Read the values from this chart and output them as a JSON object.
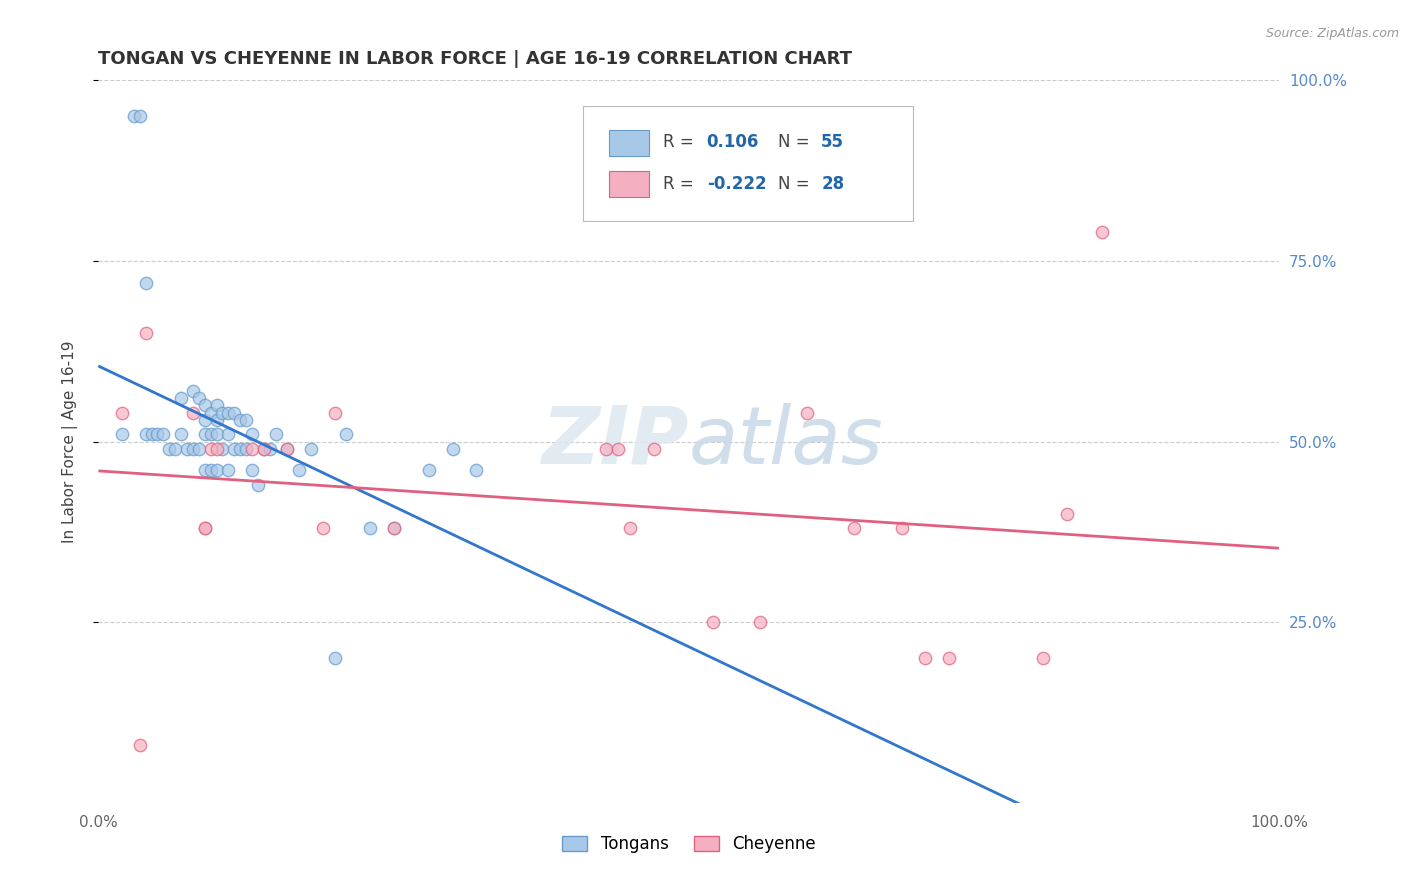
{
  "title": "TONGAN VS CHEYENNE IN LABOR FORCE | AGE 16-19 CORRELATION CHART",
  "source_text": "Source: ZipAtlas.com",
  "ylabel": "In Labor Force | Age 16-19",
  "xlim": [
    0.0,
    1.0
  ],
  "ylim": [
    0.0,
    1.0
  ],
  "ytick_positions": [
    0.25,
    0.5,
    0.75,
    1.0
  ],
  "right_ytick_labels": [
    "25.0%",
    "50.0%",
    "75.0%",
    "100.0%"
  ],
  "grid_color": "#cccccc",
  "background_color": "#ffffff",
  "tongans_color": "#a8c8e8",
  "cheyenne_color": "#f4b0c0",
  "tongans_edge_color": "#6699cc",
  "cheyenne_edge_color": "#e06080",
  "tongans_R": 0.106,
  "tongans_N": 55,
  "cheyenne_R": -0.222,
  "cheyenne_N": 28,
  "legend_color": "#2266aa",
  "marker_size": 80,
  "line_blue_color": "#3377cc",
  "line_pink_color": "#e06080",
  "trend_line_lw": 2.0,
  "watermark_text": "ZIPatlas",
  "tongans_x": [
    0.02,
    0.03,
    0.035,
    0.04,
    0.04,
    0.045,
    0.05,
    0.055,
    0.06,
    0.065,
    0.07,
    0.07,
    0.075,
    0.08,
    0.08,
    0.085,
    0.085,
    0.09,
    0.09,
    0.09,
    0.09,
    0.095,
    0.095,
    0.095,
    0.1,
    0.1,
    0.1,
    0.1,
    0.105,
    0.105,
    0.11,
    0.11,
    0.11,
    0.115,
    0.115,
    0.12,
    0.12,
    0.125,
    0.125,
    0.13,
    0.13,
    0.135,
    0.14,
    0.145,
    0.15,
    0.16,
    0.17,
    0.18,
    0.2,
    0.21,
    0.23,
    0.25,
    0.28,
    0.3,
    0.32
  ],
  "tongans_y": [
    0.51,
    0.95,
    0.95,
    0.72,
    0.51,
    0.51,
    0.51,
    0.51,
    0.49,
    0.49,
    0.56,
    0.51,
    0.49,
    0.57,
    0.49,
    0.56,
    0.49,
    0.55,
    0.53,
    0.51,
    0.46,
    0.54,
    0.51,
    0.46,
    0.55,
    0.53,
    0.51,
    0.46,
    0.54,
    0.49,
    0.54,
    0.51,
    0.46,
    0.54,
    0.49,
    0.53,
    0.49,
    0.53,
    0.49,
    0.51,
    0.46,
    0.44,
    0.49,
    0.49,
    0.51,
    0.49,
    0.46,
    0.49,
    0.2,
    0.51,
    0.38,
    0.38,
    0.46,
    0.49,
    0.46
  ],
  "cheyenne_x": [
    0.02,
    0.035,
    0.04,
    0.08,
    0.09,
    0.09,
    0.095,
    0.1,
    0.13,
    0.14,
    0.16,
    0.19,
    0.2,
    0.25,
    0.43,
    0.44,
    0.45,
    0.47,
    0.52,
    0.56,
    0.6,
    0.64,
    0.68,
    0.7,
    0.72,
    0.8,
    0.82,
    0.85
  ],
  "cheyenne_y": [
    0.54,
    0.08,
    0.65,
    0.54,
    0.38,
    0.38,
    0.49,
    0.49,
    0.49,
    0.49,
    0.49,
    0.38,
    0.54,
    0.38,
    0.49,
    0.49,
    0.38,
    0.49,
    0.25,
    0.25,
    0.54,
    0.38,
    0.38,
    0.2,
    0.2,
    0.2,
    0.4,
    0.79
  ]
}
